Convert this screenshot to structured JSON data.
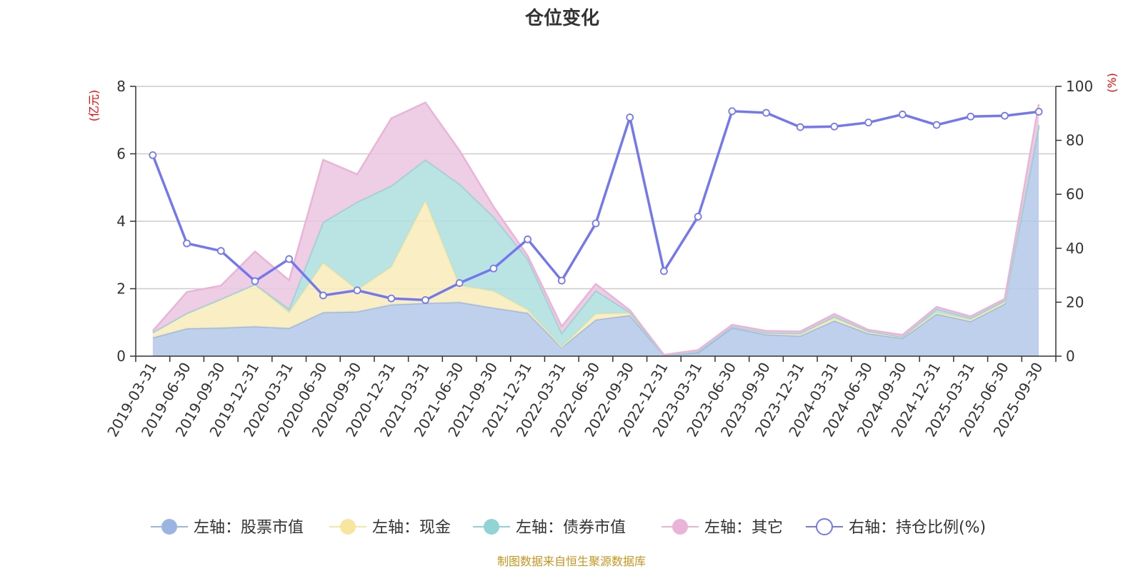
{
  "chart_data": {
    "type": "area",
    "title": "仓位变化",
    "left_axis": {
      "unit": "(亿元)",
      "ylim": [
        0,
        8
      ],
      "ticks": [
        "0",
        "2",
        "4",
        "6",
        "8"
      ]
    },
    "right_axis": {
      "unit": "(%)",
      "ylim": [
        0,
        100
      ],
      "ticks": [
        "0",
        "20",
        "40",
        "60",
        "80",
        "100"
      ]
    },
    "grid": true,
    "legend_position": "bottom",
    "categories": [
      "2019-03-31",
      "2019-06-30",
      "2019-09-30",
      "2019-12-31",
      "2020-03-31",
      "2020-06-30",
      "2020-09-30",
      "2020-12-31",
      "2021-03-31",
      "2021-06-30",
      "2021-09-30",
      "2021-12-31",
      "2022-03-31",
      "2022-06-30",
      "2022-09-30",
      "2022-12-31",
      "2023-03-31",
      "2023-06-30",
      "2023-09-30",
      "2023-12-31",
      "2024-03-31",
      "2024-06-30",
      "2024-09-30",
      "2024-12-31",
      "2025-03-31",
      "2025-06-30",
      "2025-09-30"
    ],
    "series": [
      {
        "name": "左轴：股票市值",
        "axis": "left",
        "color": "#9ab5e1",
        "fill": "#b3c8e9",
        "values": [
          0.55,
          0.82,
          0.84,
          0.88,
          0.83,
          1.3,
          1.32,
          1.53,
          1.57,
          1.6,
          1.43,
          1.28,
          0.26,
          1.08,
          1.21,
          0.02,
          0.1,
          0.84,
          0.64,
          0.6,
          1.05,
          0.67,
          0.53,
          1.25,
          1.03,
          1.55,
          6.8
        ]
      },
      {
        "name": "左轴：现金",
        "axis": "left",
        "color": "#f8e6a0",
        "fill": "#f8ebba",
        "values": [
          0.15,
          0.45,
          0.85,
          1.25,
          0.47,
          1.47,
          0.65,
          1.12,
          3.05,
          0.5,
          0.5,
          0.1,
          0.02,
          0.18,
          0.07,
          0.0,
          0.03,
          0.03,
          0.05,
          0.07,
          0.08,
          0.05,
          0.04,
          0.05,
          0.05,
          0.05,
          0.05
        ]
      },
      {
        "name": "左轴：债券市值",
        "axis": "left",
        "color": "#90d4d5",
        "fill": "#addfde",
        "values": [
          0.0,
          0.0,
          0.0,
          0.0,
          0.1,
          1.2,
          2.6,
          2.4,
          1.2,
          3.0,
          2.2,
          1.5,
          0.4,
          0.68,
          0.02,
          0.0,
          0.0,
          0.0,
          0.0,
          0.0,
          0.05,
          0.02,
          0.0,
          0.1,
          0.05,
          0.05,
          0.0
        ]
      },
      {
        "name": "左轴：其它",
        "axis": "left",
        "color": "#e9b4d7",
        "fill": "#ebc6df",
        "values": [
          0.05,
          0.63,
          0.4,
          0.97,
          0.85,
          1.85,
          0.82,
          2.0,
          1.7,
          1.0,
          0.3,
          0.1,
          0.2,
          0.2,
          0.06,
          0.02,
          0.05,
          0.06,
          0.06,
          0.06,
          0.07,
          0.04,
          0.06,
          0.06,
          0.05,
          0.05,
          0.62
        ]
      },
      {
        "name": "右轴：持仓比例(%)",
        "axis": "right",
        "color": "#7478ec",
        "values": [
          74.5,
          41.8,
          39.0,
          27.8,
          36.0,
          22.5,
          24.4,
          21.4,
          20.8,
          27.1,
          32.5,
          43.3,
          28.0,
          49.2,
          88.5,
          31.5,
          51.7,
          90.8,
          90.2,
          84.9,
          85.1,
          86.6,
          89.6,
          85.7,
          88.8,
          89.1,
          90.6
        ]
      }
    ]
  },
  "footer": {
    "source": "制图数据来自恒生聚源数据库"
  }
}
